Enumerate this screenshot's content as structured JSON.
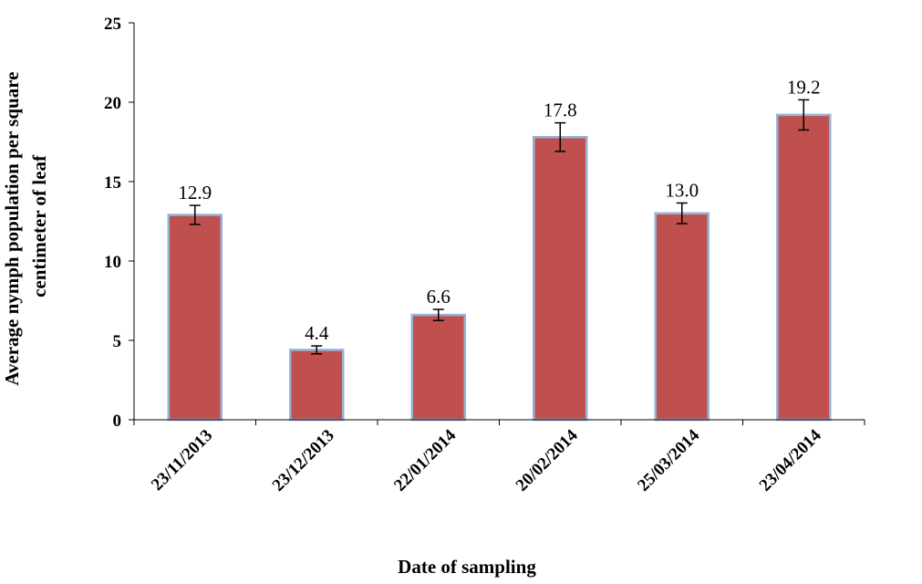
{
  "chart_data": {
    "type": "bar",
    "categories": [
      "23/11/2013",
      "23/12/2013",
      "22/01/2014",
      "20/02/2014",
      "25/03/2014",
      "23/04/2014"
    ],
    "values": [
      12.9,
      4.4,
      6.6,
      17.8,
      13.0,
      19.2
    ],
    "value_labels": [
      "12.9",
      "4.4",
      "6.6",
      "17.8",
      "13.0",
      "19.2"
    ],
    "error": [
      0.6,
      0.25,
      0.35,
      0.9,
      0.65,
      0.95
    ],
    "xlabel": "Date of sampling",
    "ylabel_lines": [
      "Average nymph population per square",
      "centimeter of leaf"
    ],
    "ylim": [
      0,
      25
    ],
    "yticks": [
      0,
      5,
      10,
      15,
      20,
      25
    ],
    "grid": false,
    "legend": "none",
    "colors": {
      "bar_fill": "#c0504d",
      "bar_stroke": "#95b3d7"
    }
  }
}
